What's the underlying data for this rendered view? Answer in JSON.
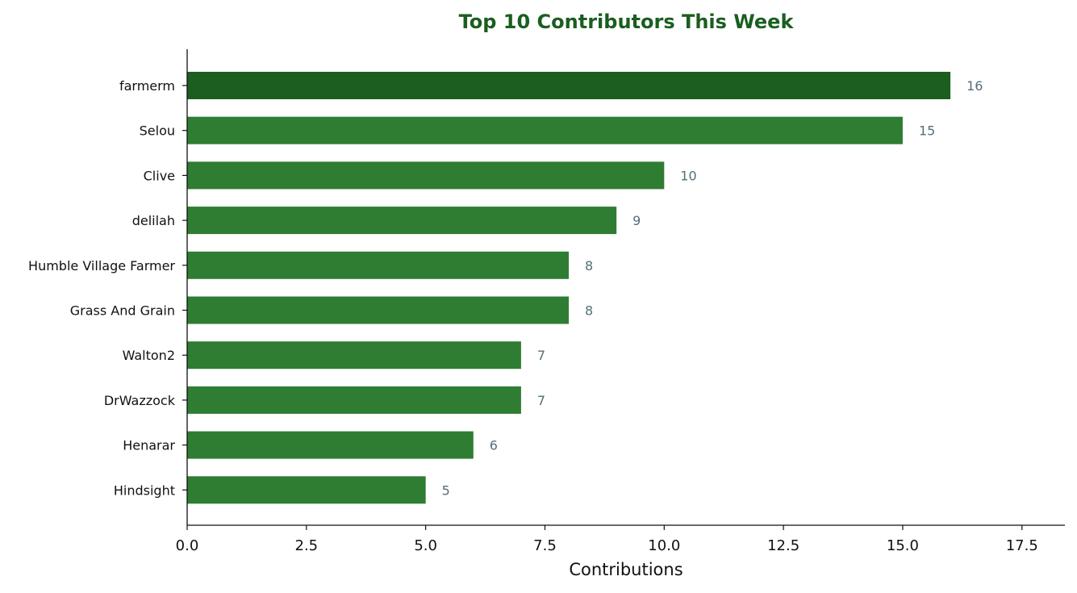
{
  "chart_data": {
    "type": "bar",
    "orientation": "horizontal",
    "title": "Top 10 Contributors This Week",
    "xlabel": "Contributions",
    "ylabel": "",
    "categories": [
      "farmerm",
      "Selou",
      "Clive",
      "delilah",
      "Humble Village Farmer",
      "Grass And Grain",
      "Walton2",
      "DrWazzock",
      "Henarar",
      "Hindsight"
    ],
    "values": [
      16,
      15,
      10,
      9,
      8,
      8,
      7,
      7,
      6,
      5
    ],
    "xlim": [
      0,
      18.4
    ],
    "xticks": [
      0,
      2.5,
      5,
      7.5,
      10,
      12.5,
      15,
      17.5
    ],
    "xtick_labels": [
      "0.0",
      "2.5",
      "5.0",
      "7.5",
      "10.0",
      "12.5",
      "15.0",
      "17.5"
    ],
    "grid": false,
    "highlight_index": 0,
    "colors": {
      "bar": "#2e7d32",
      "highlight": "#1b5e20",
      "title": "#1b5e20",
      "value_label": "#546e7a",
      "axis": "#111111"
    }
  }
}
